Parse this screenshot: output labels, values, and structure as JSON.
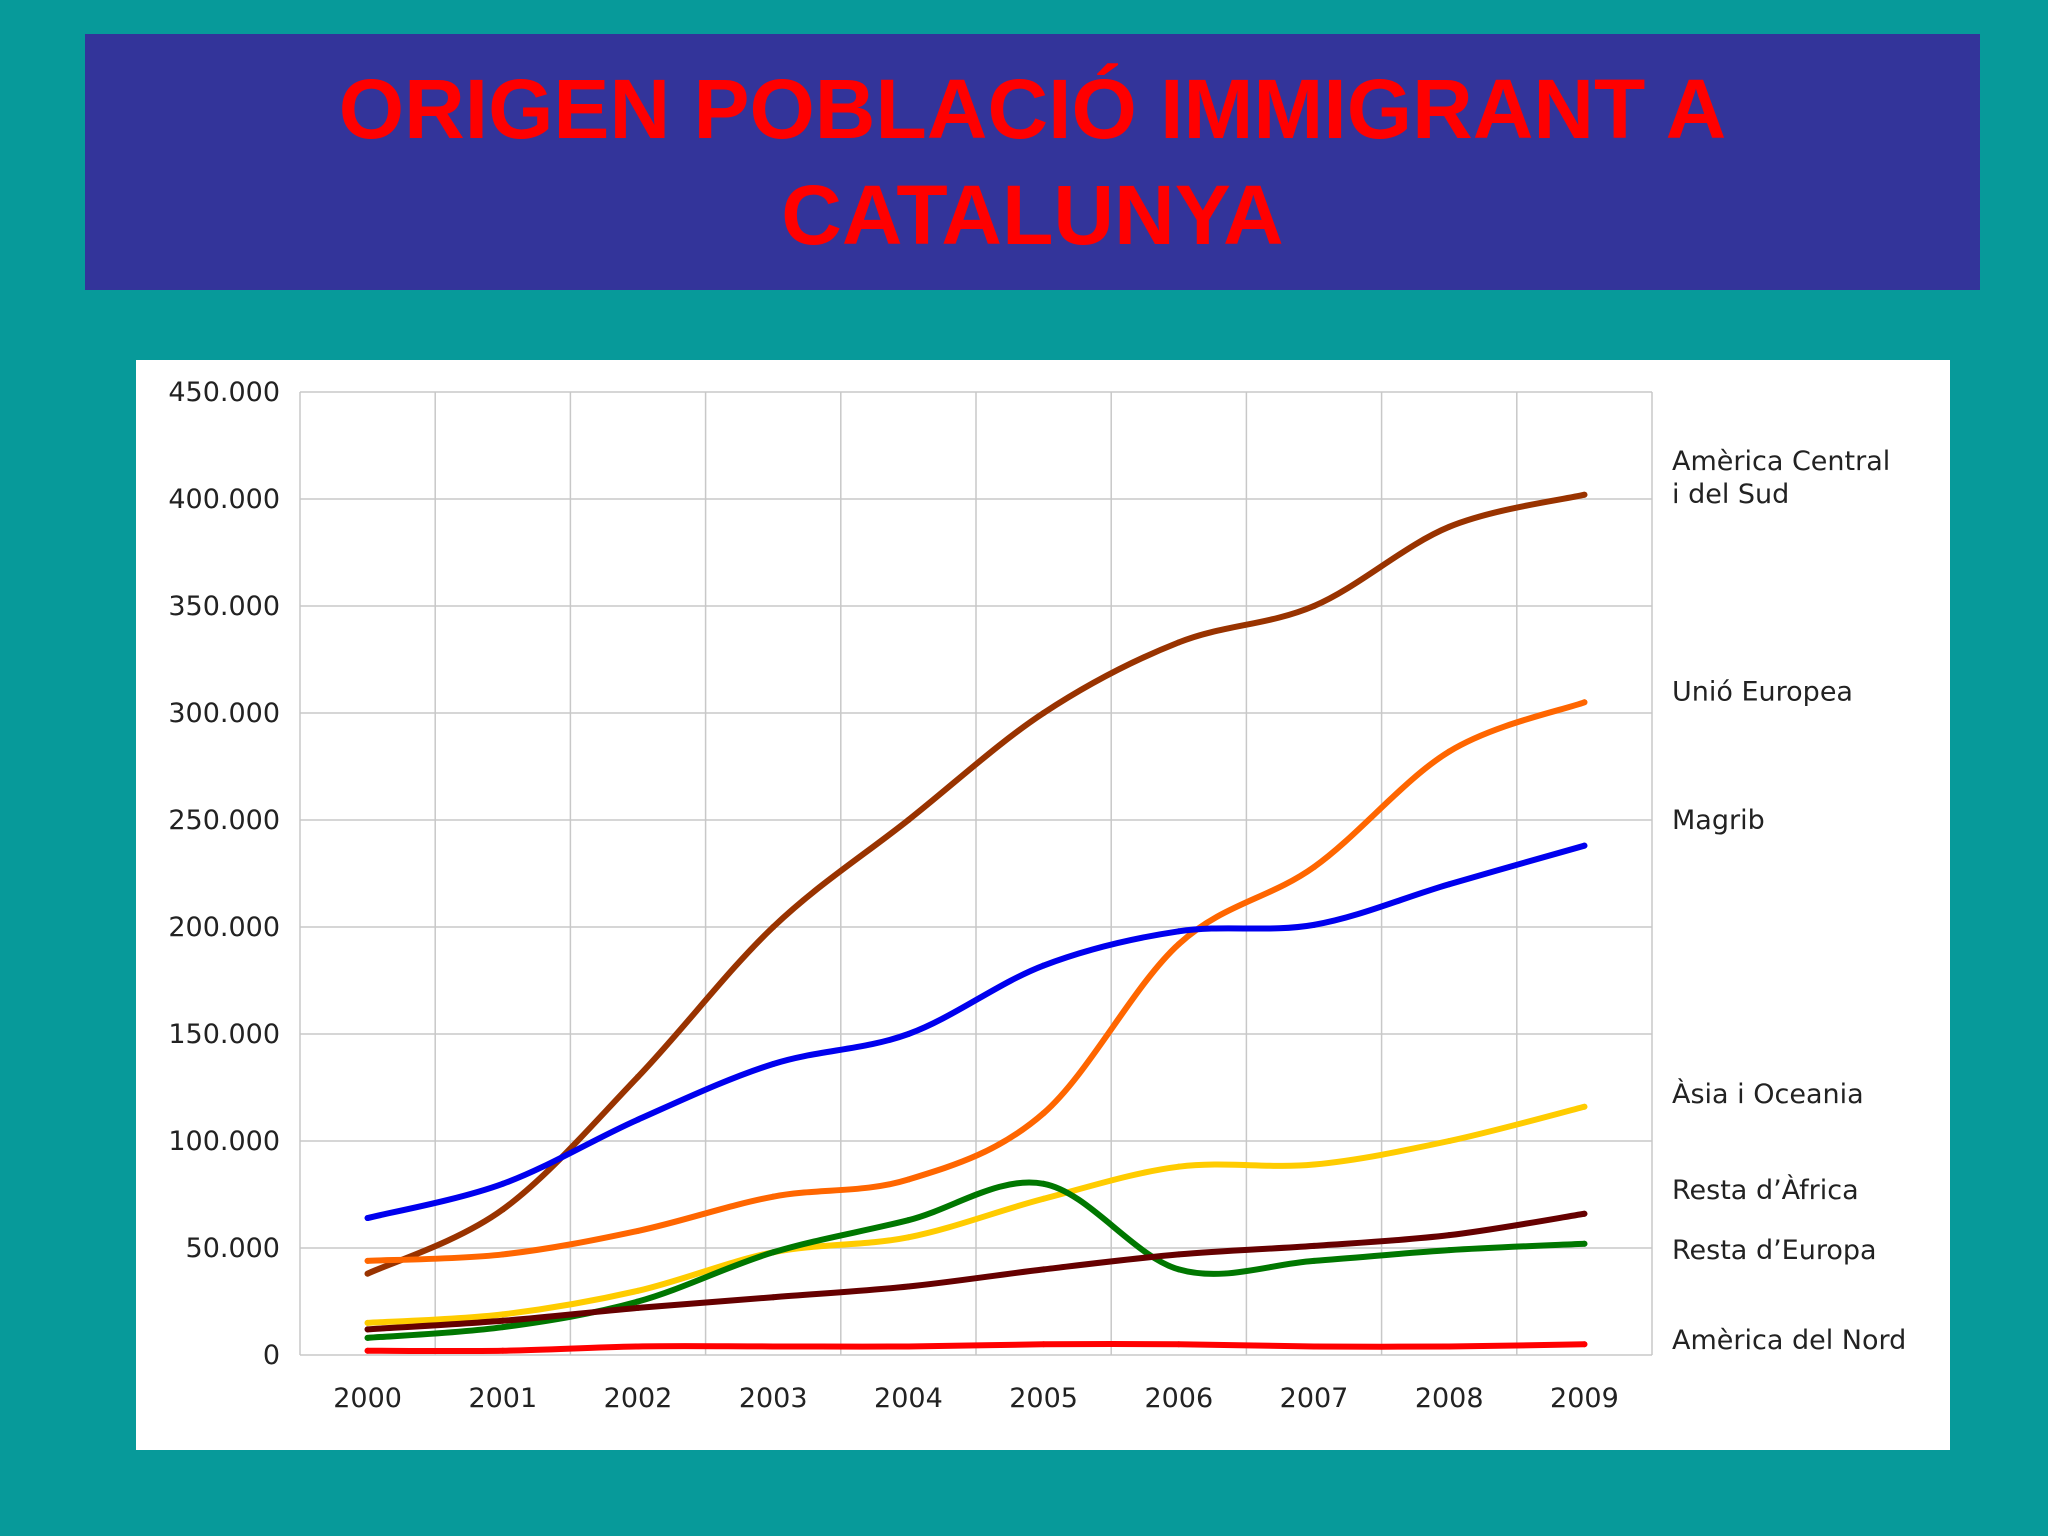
{
  "slide": {
    "title_line1": "ORIGEN POBLACIÓ IMMIGRANT A",
    "title_line2": "CATALUNYA",
    "background_color": "#079a9a",
    "title_bar_color": "#33349a",
    "title_color": "#ff0000"
  },
  "chart_data": {
    "type": "line",
    "title": "",
    "xlabel": "",
    "ylabel": "",
    "x": [
      2000,
      2001,
      2002,
      2003,
      2004,
      2005,
      2006,
      2007,
      2008,
      2009
    ],
    "x_tick_labels": [
      "2000",
      "2001",
      "2002",
      "2003",
      "2004",
      "2005",
      "2006",
      "2007",
      "2008",
      "2009"
    ],
    "xlim": [
      1999.5,
      2009.5
    ],
    "ylim": [
      0,
      450000
    ],
    "y_ticks": [
      0,
      50000,
      100000,
      150000,
      200000,
      250000,
      300000,
      350000,
      400000,
      450000
    ],
    "y_tick_labels": [
      "0",
      "50.000",
      "100.000",
      "150.000",
      "200.000",
      "250.000",
      "300.000",
      "350.000",
      "400.000",
      "450.000"
    ],
    "grid": true,
    "legend_position": "right, labels beside the series ends",
    "series": [
      {
        "name": "Amèrica Central i del Sud",
        "label_lines": [
          "Amèrica Central",
          "i del Sud"
        ],
        "label_value": 410000,
        "color": "#993300",
        "values": [
          38000,
          68000,
          130000,
          200000,
          250000,
          300000,
          333000,
          350000,
          387000,
          402000
        ]
      },
      {
        "name": "Unió Europea",
        "label_lines": [
          "Unió Europea"
        ],
        "label_value": 310000,
        "color": "#ff6600",
        "values": [
          44000,
          47000,
          58000,
          74000,
          82000,
          113000,
          192000,
          228000,
          282000,
          305000
        ]
      },
      {
        "name": "Magrib",
        "label_lines": [
          "Magrib"
        ],
        "label_value": 250000,
        "color": "#0000ee",
        "values": [
          64000,
          80000,
          110000,
          136000,
          150000,
          182000,
          198000,
          201000,
          220000,
          238000
        ]
      },
      {
        "name": "Àsia i Oceania",
        "label_lines": [
          "Àsia i Oceania"
        ],
        "label_value": 122000,
        "color": "#ffcc00",
        "values": [
          15000,
          19000,
          30000,
          48000,
          55000,
          73000,
          88000,
          89000,
          100000,
          116000
        ]
      },
      {
        "name": "Resta d'Àfrica",
        "label_lines": [
          "Resta d’Àfrica"
        ],
        "label_value": 77000,
        "color": "#007700",
        "values": [
          8000,
          13000,
          25000,
          48000,
          63000,
          80000,
          40000,
          44000,
          49000,
          52000
        ]
      },
      {
        "name": "Resta d'Europa",
        "label_lines": [
          "Resta d’Europa"
        ],
        "label_value": 49000,
        "color": "#660000",
        "values": [
          12000,
          16000,
          22000,
          27000,
          32000,
          40000,
          47000,
          51000,
          56000,
          66000
        ]
      },
      {
        "name": "Amèrica del Nord",
        "label_lines": [
          "Amèrica del Nord"
        ],
        "label_value": 7000,
        "color": "#ff0000",
        "values": [
          2000,
          2000,
          4000,
          4000,
          4000,
          5000,
          5000,
          4000,
          4000,
          5000
        ]
      }
    ]
  }
}
